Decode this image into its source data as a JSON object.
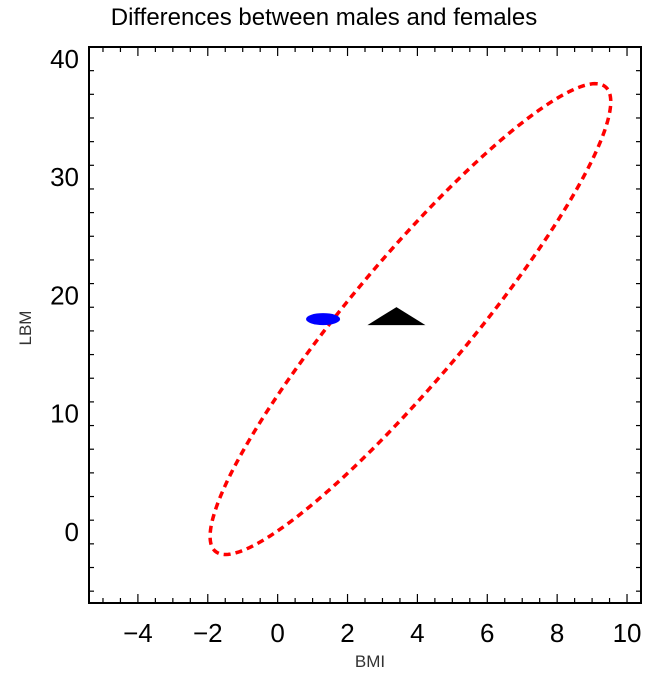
{
  "chart_data": {
    "type": "scatter",
    "title": "Differences between males and females",
    "xlabel": "BMI",
    "ylabel": "LBM",
    "xlim": [
      -5.4,
      10.4
    ],
    "ylim": [
      -6,
      41
    ],
    "x_ticks": [
      -4,
      -2,
      0,
      2,
      4,
      6,
      8,
      10
    ],
    "y_ticks": [
      0,
      10,
      20,
      30,
      40
    ],
    "grid": false,
    "ellipse": {
      "style": "dashed",
      "color": "#ff0000",
      "center": [
        3.8,
        18
      ],
      "semi_major": 20.6,
      "semi_minor": 2.5,
      "angle_deg": 75
    },
    "markers": [
      {
        "shape": "ellipse",
        "color": "#0000ff",
        "x": 1.3,
        "y": 18.0
      },
      {
        "shape": "triangle",
        "color": "#000000",
        "x": 3.4,
        "y": 18.0
      }
    ]
  }
}
